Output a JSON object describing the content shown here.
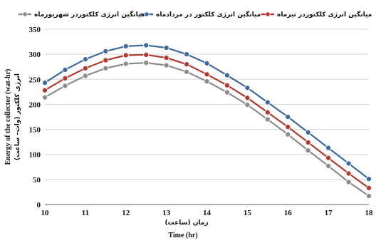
{
  "chart_data": {
    "type": "line",
    "x": [
      10,
      10.5,
      11,
      11.5,
      12,
      12.5,
      13,
      13.5,
      14,
      14.5,
      15,
      15.5,
      16,
      16.5,
      17,
      17.5,
      18
    ],
    "xticks": [
      "10",
      "11",
      "12",
      "13",
      "14",
      "15",
      "16",
      "17",
      "18"
    ],
    "yticks": [
      "0",
      "50",
      "100",
      "150",
      "200",
      "250",
      "300",
      "350"
    ],
    "xlim": [
      10,
      18
    ],
    "ylim": [
      0,
      350
    ],
    "grid": "horizontal",
    "legend_position": "top",
    "xlabel_fa": "زمان (ساعت)",
    "xlabel_en": "Time (hr)",
    "ylabel_fa": "انرژی کلکتور (وات– ساعت)",
    "ylabel_en": "Energy of the collector (wat-hr)",
    "series": [
      {
        "name": "میانگین انرژی کلکتوردر تیرماه",
        "color": "#b23a2e",
        "values": [
          228,
          252,
          272,
          288,
          298,
          299,
          293,
          280,
          260,
          238,
          213,
          184,
          155,
          124,
          93,
          62,
          33
        ]
      },
      {
        "name": "میانگین انرژی کلکتور در مردادماه",
        "color": "#3f6a9c",
        "values": [
          243,
          269,
          290,
          306,
          316,
          318,
          313,
          300,
          282,
          258,
          233,
          204,
          175,
          144,
          113,
          82,
          51
        ]
      },
      {
        "name": "میانگین انرژی کلکتوردر شهریورماه",
        "color": "#8c8c8c",
        "values": [
          214,
          237,
          257,
          272,
          281,
          283,
          278,
          265,
          246,
          224,
          199,
          170,
          140,
          108,
          77,
          45,
          17
        ]
      }
    ]
  }
}
